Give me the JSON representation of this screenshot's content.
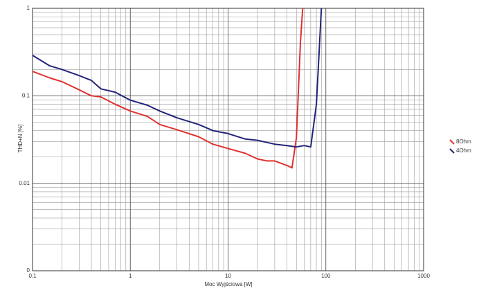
{
  "chart_data": {
    "type": "line",
    "xlabel": "Moc Wyjściowa [W]",
    "ylabel": "THD+N [%]",
    "xscale": "log",
    "yscale": "log",
    "grid": true,
    "minor_grid": true,
    "legend": "right",
    "xlim": [
      0.1,
      1000
    ],
    "xticks": [
      0.1,
      1,
      10,
      100,
      1000
    ],
    "ylim": [
      0.001,
      1
    ],
    "yticks": [
      1,
      0.1,
      0.01,
      {
        "value": 0.001,
        "label": "0"
      }
    ],
    "series": [
      {
        "name": "8Ohm",
        "color": "#e03030",
        "x": [
          0.1,
          0.15,
          0.2,
          0.3,
          0.4,
          0.5,
          0.7,
          1,
          1.5,
          2,
          3,
          5,
          7,
          10,
          15,
          20,
          25,
          30,
          40,
          45,
          50,
          55,
          58
        ],
        "values": [
          0.19,
          0.16,
          0.145,
          0.117,
          0.1,
          0.097,
          0.08,
          0.067,
          0.058,
          0.047,
          0.041,
          0.034,
          0.028,
          0.025,
          0.022,
          0.019,
          0.018,
          0.018,
          0.016,
          0.015,
          0.033,
          0.42,
          1
        ]
      },
      {
        "name": "4Ohm",
        "color": "#23237a",
        "x": [
          0.1,
          0.15,
          0.2,
          0.3,
          0.4,
          0.5,
          0.7,
          1,
          1.5,
          2,
          3,
          5,
          7,
          10,
          15,
          20,
          30,
          40,
          50,
          60,
          70,
          80,
          90
        ],
        "values": [
          0.29,
          0.22,
          0.2,
          0.17,
          0.15,
          0.12,
          0.11,
          0.089,
          0.078,
          0.067,
          0.056,
          0.047,
          0.04,
          0.037,
          0.032,
          0.031,
          0.028,
          0.027,
          0.026,
          0.027,
          0.026,
          0.08,
          1
        ]
      }
    ]
  }
}
